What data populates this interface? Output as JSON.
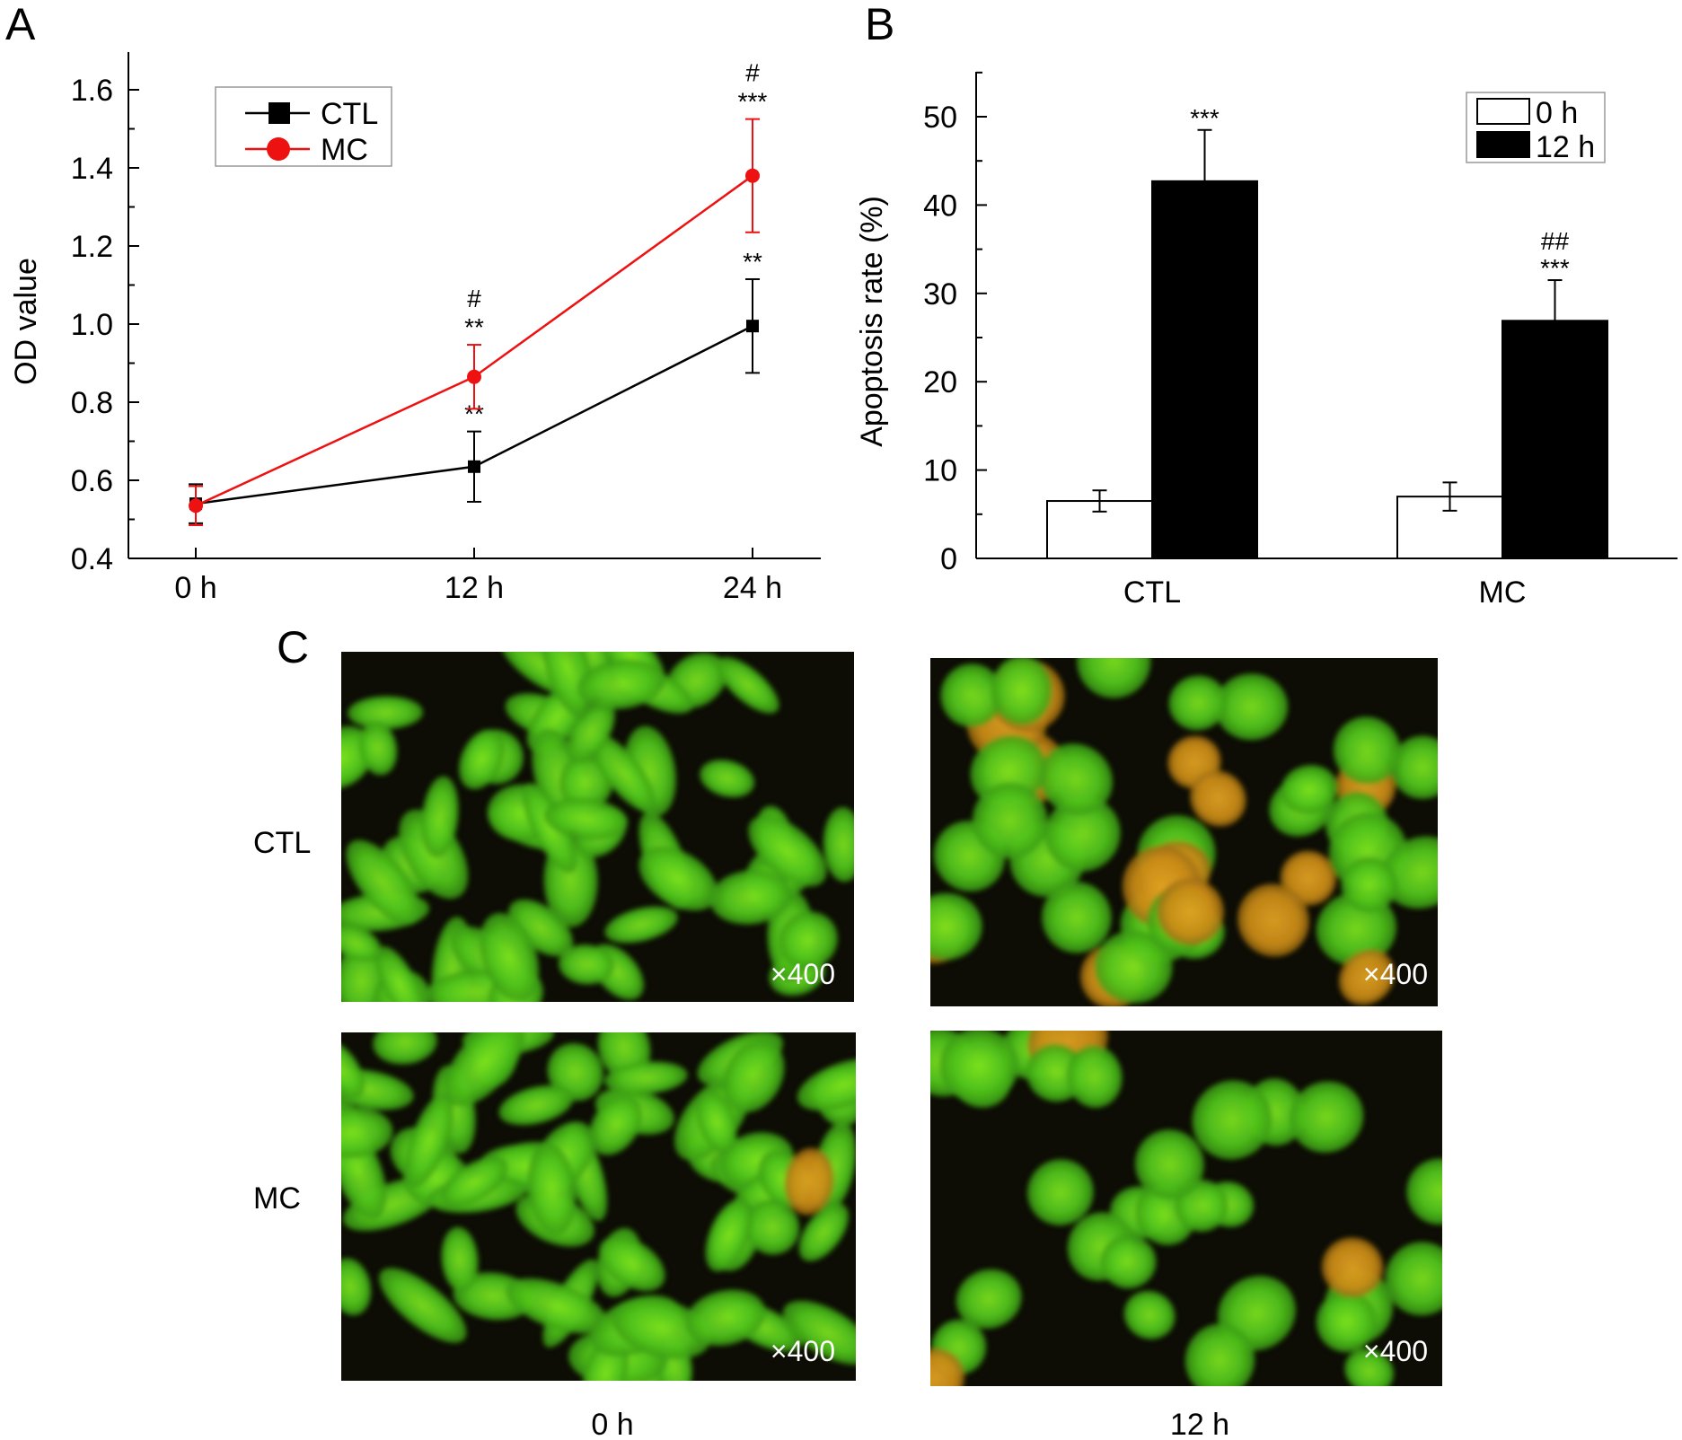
{
  "chart_data": [
    {
      "panel": "A",
      "type": "line",
      "x": [
        "0 h",
        "12 h",
        "24 h"
      ],
      "ylabel": "OD value",
      "ylim": [
        0.4,
        1.7
      ],
      "yticks": [
        "0.4",
        "0.6",
        "0.8",
        "1.0",
        "1.2",
        "1.4",
        "1.6"
      ],
      "legend": "top-left",
      "series": [
        {
          "name": "CTL",
          "color": "#000000",
          "marker": "square",
          "values": [
            0.54,
            0.635,
            0.995
          ],
          "errors": [
            0.05,
            0.09,
            0.12
          ],
          "annotations": [
            [],
            [
              "**"
            ],
            [
              "**"
            ]
          ]
        },
        {
          "name": "MC",
          "color": "#ee1111",
          "marker": "circle",
          "values": [
            0.535,
            0.865,
            1.38
          ],
          "errors": [
            0.05,
            0.082,
            0.145
          ],
          "annotations": [
            [],
            [
              "#",
              "**"
            ],
            [
              "#",
              "***"
            ]
          ]
        }
      ]
    },
    {
      "panel": "B",
      "type": "bar",
      "categories": [
        "CTL",
        "MC"
      ],
      "ylabel": "Apoptosis rate (%)",
      "ylim": [
        0,
        55
      ],
      "yticks": [
        "0",
        "10",
        "20",
        "30",
        "40",
        "50"
      ],
      "legend": "top-right",
      "series": [
        {
          "name": "0 h",
          "color": "#ffffff",
          "values": [
            6.5,
            7.0
          ],
          "errors": [
            1.2,
            1.6
          ],
          "annotations": [
            "",
            ""
          ]
        },
        {
          "name": "12 h",
          "color": "#000000",
          "values": [
            42.7,
            26.9
          ],
          "errors": [
            5.8,
            4.6
          ],
          "annotations": [
            "***",
            "***"
          ],
          "annotations_top": [
            "",
            "##"
          ]
        }
      ]
    }
  ],
  "panel_c": {
    "letter": "C",
    "rows": [
      "CTL",
      "MC"
    ],
    "columns": [
      "0 h",
      "12 h"
    ],
    "magnification": "×400"
  }
}
